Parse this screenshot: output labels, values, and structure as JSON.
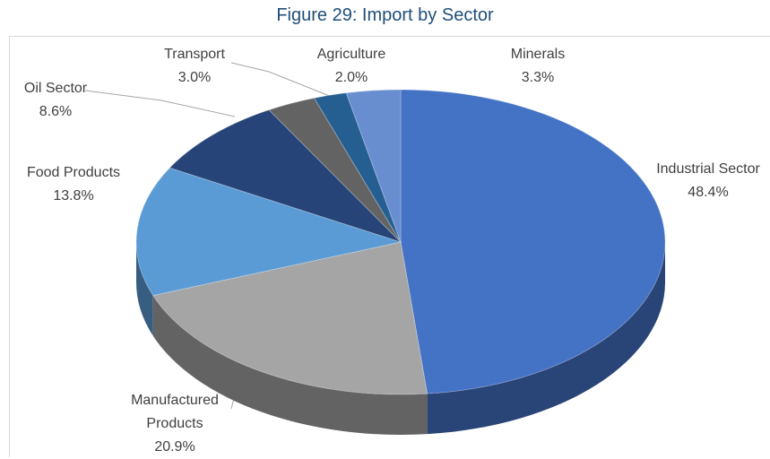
{
  "chart_data": {
    "type": "pie",
    "title": "Figure 29: Import by Sector",
    "categories": [
      "Industrial Sector",
      "Manufactured Products",
      "Food Products",
      "Oil Sector",
      "Transport",
      "Agriculture",
      "Minerals"
    ],
    "values": [
      48.4,
      20.9,
      13.8,
      8.6,
      3.0,
      2.0,
      3.3
    ],
    "value_labels": [
      "48.4%",
      "20.9%",
      "13.8%",
      "8.6%",
      "3.0%",
      "2.0%",
      "3.3%"
    ],
    "colors": [
      "#4472c4",
      "#a5a5a5",
      "#5b9bd5",
      "#264478",
      "#636363",
      "#255e91",
      "#698ed0"
    ]
  }
}
